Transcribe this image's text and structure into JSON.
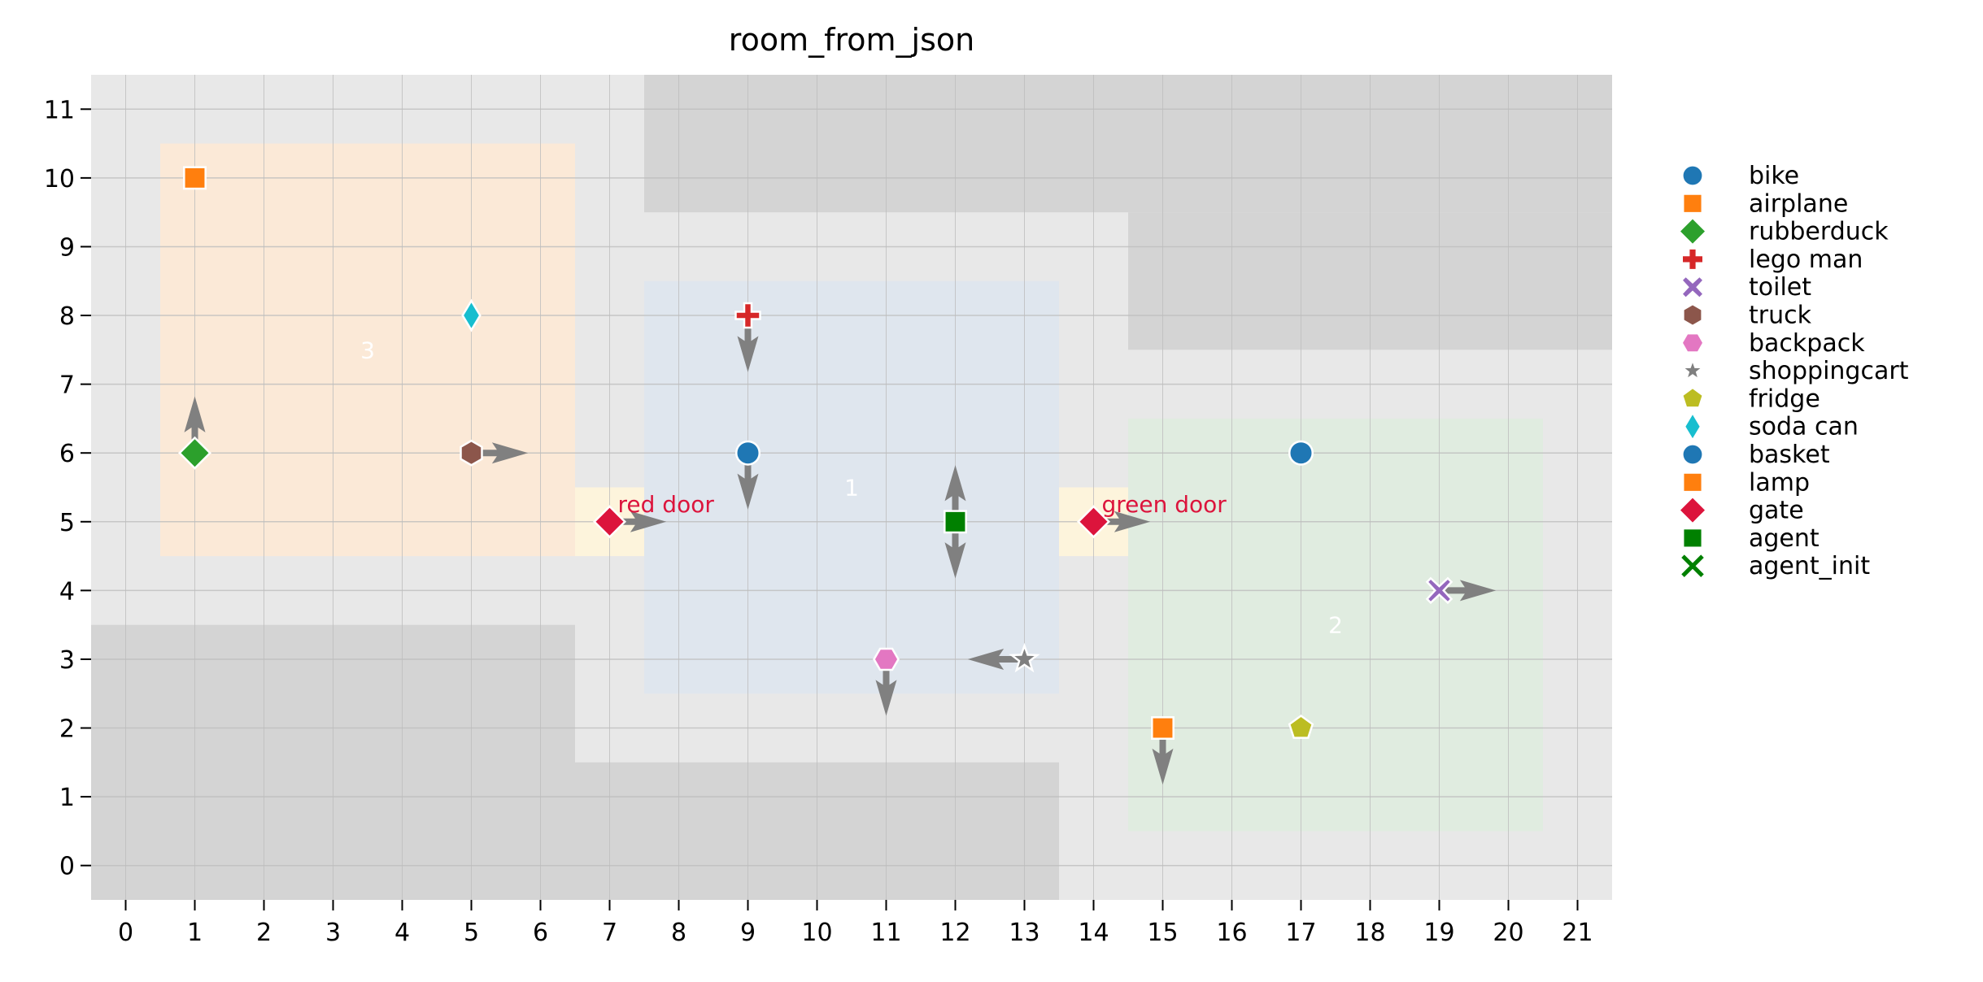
{
  "chart_data": {
    "type": "scatter",
    "title": "room_from_json",
    "xlabel": "",
    "ylabel": "",
    "xlim": [
      -0.5,
      21.5
    ],
    "ylim": [
      -0.5,
      11.5
    ],
    "xticks": [
      0,
      1,
      2,
      3,
      4,
      5,
      6,
      7,
      8,
      9,
      10,
      11,
      12,
      13,
      14,
      15,
      16,
      17,
      18,
      19,
      20,
      21
    ],
    "yticks": [
      0,
      1,
      2,
      3,
      4,
      5,
      6,
      7,
      8,
      9,
      10,
      11
    ],
    "grid": true,
    "legend_position": "right-outside",
    "colors": {
      "background": "#e8e8e8",
      "wall": "#d4d4d4",
      "grid": "#bdbdbd",
      "arrow": "#808080"
    },
    "walls": [
      {
        "x": [
          7.5,
          21.5
        ],
        "y": [
          9.5,
          11.5
        ]
      },
      {
        "x": [
          14.5,
          21.5
        ],
        "y": [
          7.5,
          9.5
        ]
      },
      {
        "x": [
          -0.5,
          6.5
        ],
        "y": [
          -0.5,
          3.5
        ]
      },
      {
        "x": [
          6.5,
          13.5
        ],
        "y": [
          -0.5,
          1.5
        ]
      }
    ],
    "rooms": [
      {
        "label": "3",
        "x": [
          0.5,
          6.5
        ],
        "y": [
          4.5,
          10.5
        ],
        "color": "#fbe9d7",
        "label_at": [
          3.5,
          7.5
        ]
      },
      {
        "label": "1",
        "x": [
          7.5,
          13.5
        ],
        "y": [
          2.5,
          8.5
        ],
        "color": "#dfe6ee",
        "label_at": [
          10.5,
          5.5
        ]
      },
      {
        "label": "2",
        "x": [
          14.5,
          20.5
        ],
        "y": [
          0.5,
          6.5
        ],
        "color": "#e0ece0",
        "label_at": [
          17.5,
          3.5
        ]
      }
    ],
    "doors": [
      {
        "x": [
          6.5,
          7.5
        ],
        "y": [
          4.5,
          5.5
        ],
        "color": "#fdf4dc"
      },
      {
        "x": [
          13.5,
          14.5
        ],
        "y": [
          4.5,
          5.5
        ],
        "color": "#fdf4dc"
      }
    ],
    "legend": [
      {
        "name": "bike",
        "marker": "circle",
        "color": "#1f77b4"
      },
      {
        "name": "airplane",
        "marker": "square",
        "color": "#ff7f0e"
      },
      {
        "name": "rubberduck",
        "marker": "diamond",
        "color": "#2ca02c"
      },
      {
        "name": "lego man",
        "marker": "plus",
        "color": "#d62728"
      },
      {
        "name": "toilet",
        "marker": "x-filled",
        "color": "#9467bd"
      },
      {
        "name": "truck",
        "marker": "hexagon",
        "color": "#8c564b"
      },
      {
        "name": "backpack",
        "marker": "hexagon-flat",
        "color": "#e377c2"
      },
      {
        "name": "shoppingcart",
        "marker": "star",
        "color": "#7f7f7f"
      },
      {
        "name": "fridge",
        "marker": "pentagon",
        "color": "#bcbd22"
      },
      {
        "name": "soda can",
        "marker": "thin-diamond",
        "color": "#17becf"
      },
      {
        "name": "basket",
        "marker": "circle",
        "color": "#1f77b4"
      },
      {
        "name": "lamp",
        "marker": "square",
        "color": "#ff7f0e"
      },
      {
        "name": "gate",
        "marker": "diamond",
        "color": "#dc143c"
      },
      {
        "name": "agent",
        "marker": "square",
        "color": "#008000"
      },
      {
        "name": "agent_init",
        "marker": "x",
        "color": "#008000"
      }
    ],
    "points": [
      {
        "name": "bike",
        "x": 9,
        "y": 6,
        "dir": [
          "down"
        ]
      },
      {
        "name": "airplane",
        "x": 1,
        "y": 10,
        "dir": []
      },
      {
        "name": "rubberduck",
        "x": 1,
        "y": 6,
        "dir": [
          "up"
        ]
      },
      {
        "name": "lego man",
        "x": 9,
        "y": 8,
        "dir": [
          "down"
        ]
      },
      {
        "name": "toilet",
        "x": 19,
        "y": 4,
        "dir": [
          "right"
        ]
      },
      {
        "name": "truck",
        "x": 5,
        "y": 6,
        "dir": [
          "right"
        ]
      },
      {
        "name": "backpack",
        "x": 11,
        "y": 3,
        "dir": [
          "down"
        ]
      },
      {
        "name": "shoppingcart",
        "x": 13,
        "y": 3,
        "dir": [
          "left"
        ]
      },
      {
        "name": "fridge",
        "x": 17,
        "y": 2,
        "dir": []
      },
      {
        "name": "soda can",
        "x": 5,
        "y": 8,
        "dir": []
      },
      {
        "name": "basket",
        "x": 17,
        "y": 6,
        "dir": []
      },
      {
        "name": "lamp",
        "x": 15,
        "y": 2,
        "dir": [
          "down"
        ]
      },
      {
        "name": "gate",
        "x": 7,
        "y": 5,
        "dir": [
          "right"
        ],
        "label": "red door"
      },
      {
        "name": "gate",
        "x": 14,
        "y": 5,
        "dir": [
          "right"
        ],
        "label": "green door"
      },
      {
        "name": "agent",
        "x": 12,
        "y": 5,
        "dir": [
          "up",
          "down"
        ]
      }
    ],
    "annotation_color": "#dc143c"
  }
}
